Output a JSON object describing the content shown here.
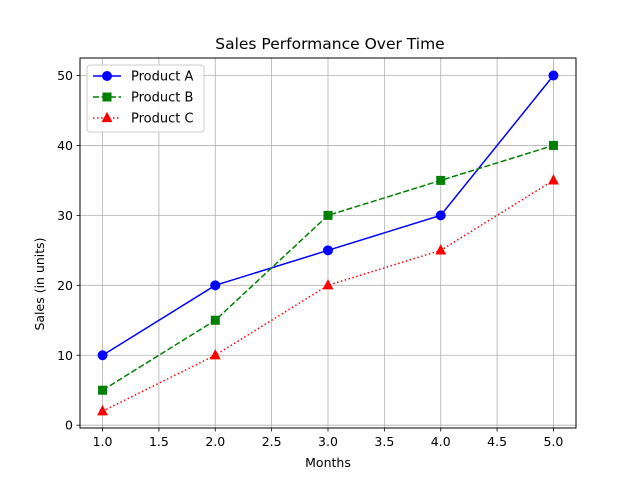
{
  "chart_data": {
    "type": "line",
    "title": "Sales Performance Over Time",
    "xlabel": "Months",
    "ylabel": "Sales (in units)",
    "xlim": [
      0.8,
      5.2
    ],
    "ylim": [
      -0.4,
      52.5
    ],
    "x_ticks": [
      1.0,
      1.5,
      2.0,
      2.5,
      3.0,
      3.5,
      4.0,
      4.5,
      5.0
    ],
    "x_tick_labels": [
      "1.0",
      "1.5",
      "2.0",
      "2.5",
      "3.0",
      "3.5",
      "4.0",
      "4.5",
      "5.0"
    ],
    "y_ticks": [
      0,
      10,
      20,
      30,
      40,
      50
    ],
    "y_tick_labels": [
      "0",
      "10",
      "20",
      "30",
      "40",
      "50"
    ],
    "grid": true,
    "legend_position": "top-left",
    "x": [
      1,
      2,
      3,
      4,
      5
    ],
    "series": [
      {
        "name": "Product A",
        "values": [
          10,
          20,
          25,
          30,
          50
        ],
        "color": "#0000ff",
        "line_style": "solid",
        "marker": "circle"
      },
      {
        "name": "Product B",
        "values": [
          5,
          15,
          30,
          35,
          40
        ],
        "color": "#008000",
        "line_style": "dashed",
        "marker": "square"
      },
      {
        "name": "Product C",
        "values": [
          2,
          10,
          20,
          25,
          35
        ],
        "color": "#ff0000",
        "line_style": "dotted",
        "marker": "triangle"
      }
    ]
  }
}
